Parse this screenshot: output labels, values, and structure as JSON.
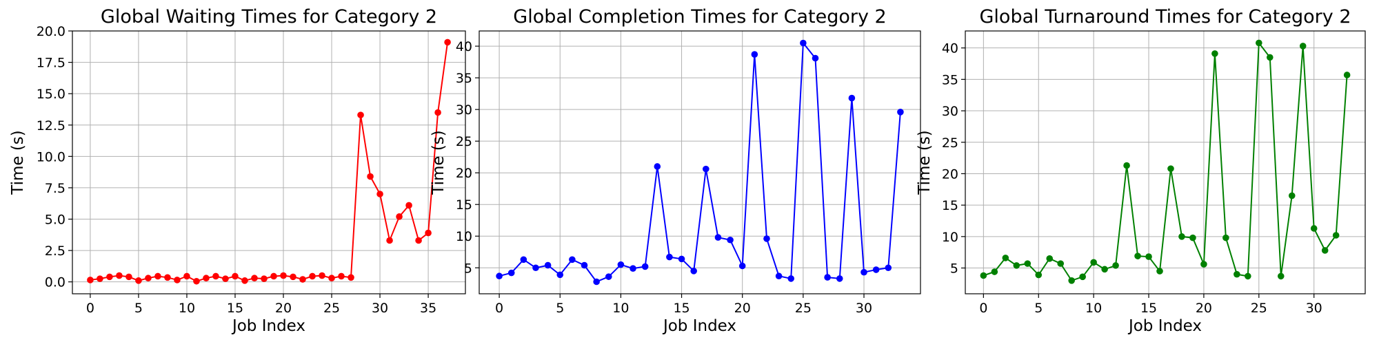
{
  "chart_data": [
    {
      "type": "line",
      "title": "Global Waiting Times for Category 2",
      "xlabel": "Job Index",
      "ylabel": "Time (s)",
      "color": "#ff0000",
      "xlim": [
        -1.85,
        38.85
      ],
      "ylim": [
        -0.95,
        20.0
      ],
      "xticks": [
        0,
        5,
        10,
        15,
        20,
        25,
        30,
        35
      ],
      "yticks": [
        0.0,
        2.5,
        5.0,
        7.5,
        10.0,
        12.5,
        15.0,
        17.5,
        20.0
      ],
      "ytick_labels": [
        "0.0",
        "2.5",
        "5.0",
        "7.5",
        "10.0",
        "12.5",
        "15.0",
        "17.5",
        "20.0"
      ],
      "grid": true,
      "x": [
        0,
        1,
        2,
        3,
        4,
        5,
        6,
        7,
        8,
        9,
        10,
        11,
        12,
        13,
        14,
        15,
        16,
        17,
        18,
        19,
        20,
        21,
        22,
        23,
        24,
        25,
        26,
        27,
        28,
        29,
        30,
        31,
        32,
        33,
        34,
        35,
        36,
        37
      ],
      "y": [
        0.15,
        0.25,
        0.4,
        0.5,
        0.4,
        0.1,
        0.3,
        0.45,
        0.35,
        0.15,
        0.45,
        0.05,
        0.3,
        0.45,
        0.25,
        0.45,
        0.1,
        0.3,
        0.25,
        0.45,
        0.5,
        0.4,
        0.2,
        0.45,
        0.5,
        0.3,
        0.45,
        0.35,
        13.3,
        8.4,
        7.0,
        3.3,
        5.2,
        6.1,
        3.3,
        3.9,
        13.5,
        19.1
      ]
    },
    {
      "type": "line",
      "title": "Global Completion Times for Category 2",
      "xlabel": "Job Index",
      "ylabel": "Time (s)",
      "color": "#0000ff",
      "xlim": [
        -1.65,
        34.65
      ],
      "ylim": [
        0.9,
        42.4
      ],
      "xticks": [
        0,
        5,
        10,
        15,
        20,
        25,
        30
      ],
      "yticks": [
        5,
        10,
        15,
        20,
        25,
        30,
        35,
        40
      ],
      "ytick_labels": [
        "5",
        "10",
        "15",
        "20",
        "25",
        "30",
        "35",
        "40"
      ],
      "grid": true,
      "x": [
        0,
        1,
        2,
        3,
        4,
        5,
        6,
        7,
        8,
        9,
        10,
        11,
        12,
        13,
        14,
        15,
        16,
        17,
        18,
        19,
        20,
        21,
        22,
        23,
        24,
        25,
        26,
        27,
        28,
        29,
        30,
        31,
        32,
        33
      ],
      "y": [
        3.7,
        4.2,
        6.3,
        5.0,
        5.4,
        3.9,
        6.3,
        5.4,
        2.8,
        3.6,
        5.5,
        4.9,
        5.2,
        21.0,
        6.7,
        6.4,
        4.5,
        20.6,
        9.8,
        9.4,
        5.3,
        38.7,
        9.6,
        3.7,
        3.3,
        40.5,
        38.1,
        3.5,
        3.3,
        31.8,
        4.3,
        4.7,
        5.0,
        29.6
      ]
    },
    {
      "type": "line",
      "title": "Global Turnaround Times for Category 2",
      "xlabel": "Job Index",
      "ylabel": "Time (s)",
      "color": "#008000",
      "xlim": [
        -1.65,
        34.65
      ],
      "ylim": [
        0.9,
        42.7
      ],
      "xticks": [
        0,
        5,
        10,
        15,
        20,
        25,
        30
      ],
      "yticks": [
        5,
        10,
        15,
        20,
        25,
        30,
        35,
        40
      ],
      "ytick_labels": [
        "5",
        "10",
        "15",
        "20",
        "25",
        "30",
        "35",
        "40"
      ],
      "grid": true,
      "x": [
        0,
        1,
        2,
        3,
        4,
        5,
        6,
        7,
        8,
        9,
        10,
        11,
        12,
        13,
        14,
        15,
        16,
        17,
        18,
        19,
        20,
        21,
        22,
        23,
        24,
        25,
        26,
        27,
        28,
        29,
        30,
        31,
        32,
        33
      ],
      "y": [
        3.8,
        4.4,
        6.6,
        5.4,
        5.7,
        3.9,
        6.5,
        5.7,
        3.0,
        3.6,
        5.9,
        4.8,
        5.4,
        21.3,
        6.9,
        6.8,
        4.5,
        20.8,
        10.0,
        9.8,
        5.6,
        39.1,
        9.8,
        4.0,
        3.7,
        40.8,
        38.5,
        3.7,
        16.5,
        40.3,
        11.3,
        7.8,
        10.2,
        35.7
      ]
    }
  ]
}
